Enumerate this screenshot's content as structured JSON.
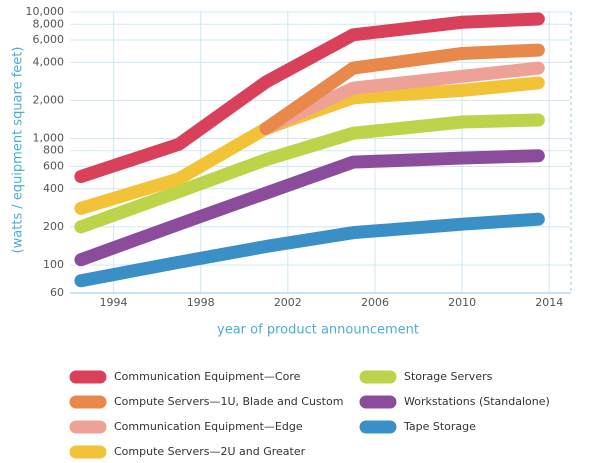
{
  "chart_data": {
    "type": "line",
    "y_label": "(watts / equipment square feet)",
    "x_label": "year of product announcement",
    "x": [
      1992.5,
      1997,
      2001,
      2005,
      2010,
      2013.5
    ],
    "series": [
      {
        "name": "Communication Equipment—Core",
        "color": "#d9405a",
        "values": [
          500,
          900,
          2800,
          6600,
          8300,
          8800
        ]
      },
      {
        "name": "Compute Servers—1U, Blade and Custom",
        "color": "#e8884a",
        "values": [
          null,
          null,
          1200,
          3600,
          4700,
          5000
        ]
      },
      {
        "name": "Communication Equipment—Edge",
        "color": "#eea196",
        "values": [
          null,
          null,
          1200,
          2500,
          3100,
          3600
        ]
      },
      {
        "name": "Compute Servers—2U and Greater",
        "color": "#f2c237",
        "values": [
          280,
          480,
          1200,
          2100,
          2400,
          2750
        ]
      },
      {
        "name": "Storage Servers",
        "color": "#bcd34a",
        "values": [
          200,
          380,
          680,
          1100,
          1350,
          1400
        ]
      },
      {
        "name": "Workstations (Standalone)",
        "color": "#8b4d9b",
        "values": [
          110,
          210,
          370,
          650,
          700,
          730
        ]
      },
      {
        "name": "Tape Storage",
        "color": "#3a8fc7",
        "values": [
          75,
          105,
          140,
          180,
          210,
          230
        ]
      }
    ],
    "xlim": [
      1992,
      2015
    ],
    "xticks": [
      1994,
      1998,
      2002,
      2006,
      2010,
      2014
    ],
    "ylim": [
      60,
      10000
    ],
    "log_y": true,
    "yticks": [
      60,
      100,
      200,
      400,
      600,
      800,
      {
        "value": 1000,
        "label": "1,000"
      },
      {
        "value": 2000,
        "label": "2,000"
      },
      {
        "value": 4000,
        "label": "4,000"
      },
      {
        "value": 6000,
        "label": "6,000"
      },
      {
        "value": 8000,
        "label": "8,000"
      },
      {
        "value": 10000,
        "label": "10,000"
      }
    ],
    "grid": true
  }
}
